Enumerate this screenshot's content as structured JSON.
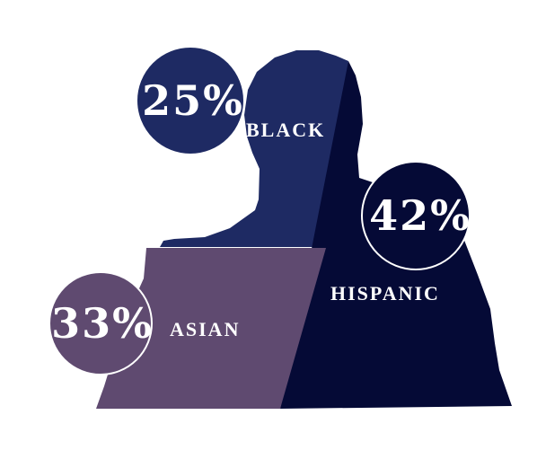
{
  "chart_data": {
    "type": "pie",
    "title": "",
    "slices": [
      {
        "label": "BLACK",
        "value": 25,
        "display": "25%",
        "color": "#1e2a63"
      },
      {
        "label": "HISPANIC",
        "value": 42,
        "display": "42%",
        "color": "#050a36"
      },
      {
        "label": "ASIAN",
        "value": 33,
        "display": "33%",
        "color": "#5f4a70"
      }
    ],
    "legend": "none"
  }
}
